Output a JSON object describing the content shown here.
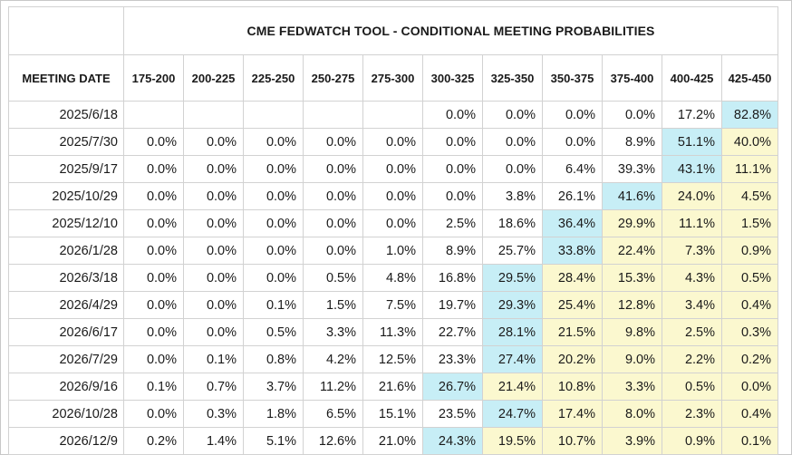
{
  "chart_data": {
    "type": "table",
    "title": "CME FEDWATCH TOOL - CONDITIONAL MEETING PROBABILITIES",
    "row_header_label": "MEETING DATE",
    "columns": [
      "175-200",
      "200-225",
      "225-250",
      "250-275",
      "275-300",
      "300-325",
      "325-350",
      "350-375",
      "375-400",
      "400-425",
      "425-450"
    ],
    "rows": [
      {
        "date": "2025/6/18",
        "values": [
          "",
          "",
          "",
          "",
          "",
          "0.0%",
          "0.0%",
          "0.0%",
          "0.0%",
          "17.2%",
          "82.8%"
        ],
        "max_col": 10,
        "pale_from": null
      },
      {
        "date": "2025/7/30",
        "values": [
          "0.0%",
          "0.0%",
          "0.0%",
          "0.0%",
          "0.0%",
          "0.0%",
          "0.0%",
          "0.0%",
          "8.9%",
          "51.1%",
          "40.0%"
        ],
        "max_col": 9,
        "pale_from": 10
      },
      {
        "date": "2025/9/17",
        "values": [
          "0.0%",
          "0.0%",
          "0.0%",
          "0.0%",
          "0.0%",
          "0.0%",
          "0.0%",
          "6.4%",
          "39.3%",
          "43.1%",
          "11.1%"
        ],
        "max_col": 9,
        "pale_from": 10
      },
      {
        "date": "2025/10/29",
        "values": [
          "0.0%",
          "0.0%",
          "0.0%",
          "0.0%",
          "0.0%",
          "0.0%",
          "3.8%",
          "26.1%",
          "41.6%",
          "24.0%",
          "4.5%"
        ],
        "max_col": 8,
        "pale_from": 9
      },
      {
        "date": "2025/12/10",
        "values": [
          "0.0%",
          "0.0%",
          "0.0%",
          "0.0%",
          "0.0%",
          "2.5%",
          "18.6%",
          "36.4%",
          "29.9%",
          "11.1%",
          "1.5%"
        ],
        "max_col": 7,
        "pale_from": 8
      },
      {
        "date": "2026/1/28",
        "values": [
          "0.0%",
          "0.0%",
          "0.0%",
          "0.0%",
          "1.0%",
          "8.9%",
          "25.7%",
          "33.8%",
          "22.4%",
          "7.3%",
          "0.9%"
        ],
        "max_col": 7,
        "pale_from": 8
      },
      {
        "date": "2026/3/18",
        "values": [
          "0.0%",
          "0.0%",
          "0.0%",
          "0.5%",
          "4.8%",
          "16.8%",
          "29.5%",
          "28.4%",
          "15.3%",
          "4.3%",
          "0.5%"
        ],
        "max_col": 6,
        "pale_from": 7
      },
      {
        "date": "2026/4/29",
        "values": [
          "0.0%",
          "0.0%",
          "0.1%",
          "1.5%",
          "7.5%",
          "19.7%",
          "29.3%",
          "25.4%",
          "12.8%",
          "3.4%",
          "0.4%"
        ],
        "max_col": 6,
        "pale_from": 7
      },
      {
        "date": "2026/6/17",
        "values": [
          "0.0%",
          "0.0%",
          "0.5%",
          "3.3%",
          "11.3%",
          "22.7%",
          "28.1%",
          "21.5%",
          "9.8%",
          "2.5%",
          "0.3%"
        ],
        "max_col": 6,
        "pale_from": 7
      },
      {
        "date": "2026/7/29",
        "values": [
          "0.0%",
          "0.1%",
          "0.8%",
          "4.2%",
          "12.5%",
          "23.3%",
          "27.4%",
          "20.2%",
          "9.0%",
          "2.2%",
          "0.2%"
        ],
        "max_col": 6,
        "pale_from": 7
      },
      {
        "date": "2026/9/16",
        "values": [
          "0.1%",
          "0.7%",
          "3.7%",
          "11.2%",
          "21.6%",
          "26.7%",
          "21.4%",
          "10.8%",
          "3.3%",
          "0.5%",
          "0.0%"
        ],
        "max_col": 5,
        "pale_from": 6
      },
      {
        "date": "2026/10/28",
        "values": [
          "0.0%",
          "0.3%",
          "1.8%",
          "6.5%",
          "15.1%",
          "23.5%",
          "24.7%",
          "17.4%",
          "8.0%",
          "2.3%",
          "0.4%"
        ],
        "max_col": 6,
        "pale_from": 7
      },
      {
        "date": "2026/12/9",
        "values": [
          "0.2%",
          "1.4%",
          "5.1%",
          "12.6%",
          "21.0%",
          "24.3%",
          "19.5%",
          "10.7%",
          "3.9%",
          "0.9%",
          "0.1%"
        ],
        "max_col": 5,
        "pale_from": 6
      }
    ],
    "colors": {
      "highlight": "#c7eef6",
      "pale": "#fbf8cf"
    }
  }
}
